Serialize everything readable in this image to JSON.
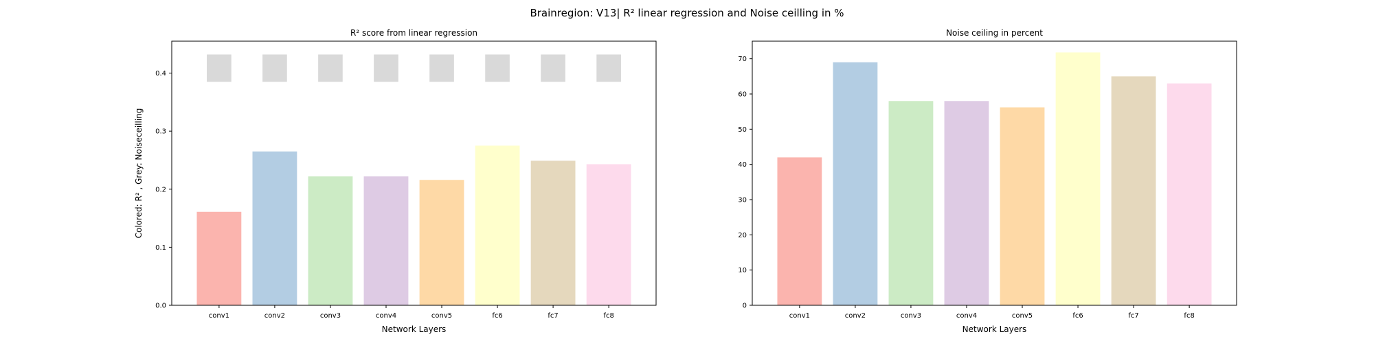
{
  "figure": {
    "title": "Brainregion: V13| R² linear regression and Noise ceilling in %"
  },
  "colors": [
    "#fbb4ae",
    "#b3cde3",
    "#ccebc5",
    "#decbe4",
    "#fed9a6",
    "#ffffcc",
    "#e5d8bd",
    "#fddaec"
  ],
  "noise_ceiling_color": "#d9d9d9",
  "chart_data": [
    {
      "type": "bar",
      "title": "R² score from linear regression",
      "xlabel": "Network Layers",
      "ylabel": "Colored: R² , Grey: Noiseceilling",
      "categories": [
        "conv1",
        "conv2",
        "conv3",
        "conv4",
        "conv5",
        "fc6",
        "fc7",
        "fc8"
      ],
      "ylim": [
        0,
        0.455
      ],
      "yticks": [
        0.0,
        0.1,
        0.2,
        0.3,
        0.4
      ],
      "ytick_labels": [
        "0.0",
        "0.1",
        "0.2",
        "0.3",
        "0.4"
      ],
      "series": [
        {
          "values": [
            0.161,
            0.265,
            0.222,
            0.222,
            0.216,
            0.275,
            0.249,
            0.243
          ]
        },
        {
          "values": [
            0.385,
            0.385,
            0.385,
            0.385,
            0.385,
            0.385,
            0.385,
            0.385
          ],
          "tops": [
            0.432,
            0.432,
            0.432,
            0.432,
            0.432,
            0.432,
            0.432,
            0.432
          ]
        }
      ],
      "grid": false
    },
    {
      "type": "bar",
      "title": "Noise ceiling in percent",
      "xlabel": "Network Layers",
      "ylabel": "",
      "categories": [
        "conv1",
        "conv2",
        "conv3",
        "conv4",
        "conv5",
        "fc6",
        "fc7",
        "fc8"
      ],
      "ylim": [
        0,
        75
      ],
      "yticks": [
        0,
        10,
        20,
        30,
        40,
        50,
        60,
        70
      ],
      "ytick_labels": [
        "0",
        "10",
        "20",
        "30",
        "40",
        "50",
        "60",
        "70"
      ],
      "values": [
        42.0,
        69.0,
        58.0,
        58.0,
        56.2,
        71.8,
        65.0,
        63.0
      ],
      "grid": false
    }
  ]
}
